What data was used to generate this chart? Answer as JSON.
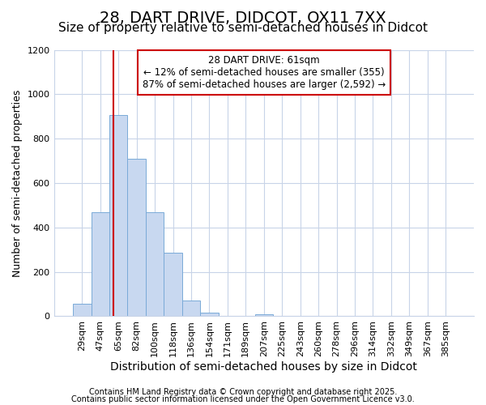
{
  "title1": "28, DART DRIVE, DIDCOT, OX11 7XX",
  "title2": "Size of property relative to semi-detached houses in Didcot",
  "xlabel": "Distribution of semi-detached houses by size in Didcot",
  "ylabel": "Number of semi-detached properties",
  "categories": [
    "29sqm",
    "47sqm",
    "65sqm",
    "82sqm",
    "100sqm",
    "118sqm",
    "136sqm",
    "154sqm",
    "171sqm",
    "189sqm",
    "207sqm",
    "225sqm",
    "243sqm",
    "260sqm",
    "278sqm",
    "296sqm",
    "314sqm",
    "332sqm",
    "349sqm",
    "367sqm",
    "385sqm"
  ],
  "values": [
    55,
    470,
    905,
    710,
    470,
    285,
    70,
    15,
    0,
    0,
    10,
    0,
    0,
    0,
    0,
    0,
    0,
    0,
    0,
    0,
    0
  ],
  "bar_color": "#c8d8f0",
  "bar_edge_color": "#7aaad8",
  "grid_color": "#c8d4e8",
  "background_color": "#ffffff",
  "vline_color": "#cc0000",
  "vline_position": 1.72,
  "annotation_title": "28 DART DRIVE: 61sqm",
  "annotation_line1": "← 12% of semi-detached houses are smaller (355)",
  "annotation_line2": "87% of semi-detached houses are larger (2,592) →",
  "annotation_box_color": "#cc0000",
  "ylim": [
    0,
    1200
  ],
  "yticks": [
    0,
    200,
    400,
    600,
    800,
    1000,
    1200
  ],
  "footer1": "Contains HM Land Registry data © Crown copyright and database right 2025.",
  "footer2": "Contains public sector information licensed under the Open Government Licence v3.0.",
  "title1_fontsize": 14,
  "title2_fontsize": 11,
  "tick_fontsize": 8,
  "ylabel_fontsize": 9,
  "xlabel_fontsize": 10,
  "footer_fontsize": 7,
  "ann_fontsize": 8.5
}
